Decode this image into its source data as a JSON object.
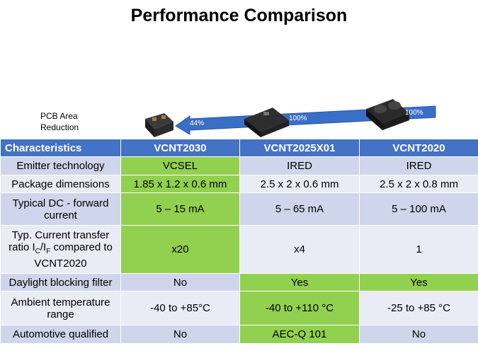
{
  "title": "Performance Comparison",
  "figure": {
    "caption": "PCB Area Reduction",
    "arrow_labels": [
      "44%",
      "100%",
      "100%"
    ]
  },
  "table": {
    "highlight_color": "#92d050",
    "header": [
      "Characteristics",
      "VCNT2030",
      "VCNT2025X01",
      "VCNT2020"
    ],
    "rows": [
      {
        "label": [
          "Emitter technology"
        ],
        "cells": [
          "VCSEL",
          "IRED",
          "IRED"
        ],
        "highlight": [
          true,
          false,
          false
        ]
      },
      {
        "label": [
          "Package dimensions"
        ],
        "cells": [
          "1.85 x 1.2 x 0.6 mm",
          "2.5 x 2 x 0.6 mm",
          "2.5 x 2 x 0.8 mm"
        ],
        "highlight": [
          true,
          false,
          false
        ]
      },
      {
        "label": [
          "Typical DC - forward current"
        ],
        "cells": [
          "5 – 15 mA",
          "5 – 65 mA",
          "5 – 100 mA"
        ],
        "highlight": [
          true,
          false,
          false
        ]
      },
      {
        "label": [
          "Typ.  Current transfer ratio I",
          "C",
          "/I",
          "F",
          "  compared to VCNT2020"
        ],
        "cells": [
          "x20",
          "x4",
          "1"
        ],
        "highlight": [
          true,
          false,
          false
        ]
      },
      {
        "label": [
          "Daylight blocking filter"
        ],
        "cells": [
          "No",
          "Yes",
          "Yes"
        ],
        "highlight": [
          false,
          true,
          true
        ]
      },
      {
        "label": [
          "Ambient temperature range"
        ],
        "cells": [
          "-40 to +85°C",
          "-40 to +110 °C",
          "-25 to +85 °C"
        ],
        "highlight": [
          false,
          true,
          false
        ]
      },
      {
        "label": [
          "Automotive qualified"
        ],
        "cells": [
          "No",
          "AEC-Q 101",
          "No"
        ],
        "highlight": [
          false,
          true,
          false
        ]
      }
    ]
  }
}
